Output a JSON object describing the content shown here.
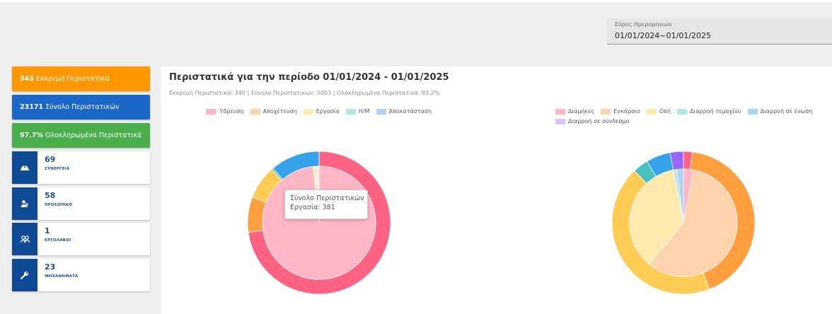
{
  "date_range": {
    "label": "Εύρος Ημερομηνιών",
    "value": "01/01/2024~01/01/2025"
  },
  "stat_bars": [
    {
      "value": "543",
      "label": "Εκκρεμή Περιστατικά",
      "color": "#ff9700"
    },
    {
      "value": "23171",
      "label": "Σύνολο Περιστατικών",
      "color": "#1a67c8"
    },
    {
      "value": "97.7%",
      "label": "Ολοκληρωμένα Περιστατικά",
      "color": "#4aae4d"
    }
  ],
  "cards": [
    {
      "value": "69",
      "label": "ΣΥΝΕΡΓΕΙΑ",
      "icon": "hard-hat-icon"
    },
    {
      "value": "58",
      "label": "ΠΡΟΣΩΠΙΚΟ",
      "icon": "user-key-icon"
    },
    {
      "value": "1",
      "label": "ΕΡΓΟΛΑΒΟΙ",
      "icon": "users-icon"
    },
    {
      "value": "23",
      "label": "ΜΗΧΑΝΗΜΑΤΑ",
      "icon": "wrench-icon"
    }
  ],
  "panel": {
    "title": "Περιστατικά για την περίοδο 01/01/2024 - 01/01/2025",
    "subtitle": "Εκκρεμή Περιστατικά: 340 | Σύνολο Περιστατικών: 5003 | Ολοκληρωμένα Περιστατικά: 93.2%"
  },
  "legend_left": [
    {
      "label": "Ύδρευση",
      "color": "#ffb6c5"
    },
    {
      "label": "Αποχέτευση",
      "color": "#ffd4ad"
    },
    {
      "label": "Εργασία",
      "color": "#ffeaad"
    },
    {
      "label": "Η/Μ",
      "color": "#b2e6e6"
    },
    {
      "label": "Αποκατάσταση",
      "color": "#aad3f5"
    }
  ],
  "legend_right": [
    {
      "label": "Διαμήκες",
      "color": "#ffb6c5"
    },
    {
      "label": "Εγκάρσιο",
      "color": "#ffd4ad"
    },
    {
      "label": "Οπή",
      "color": "#ffeaad"
    },
    {
      "label": "Διαρροή τεμαχίου",
      "color": "#b2e6e6"
    },
    {
      "label": "Διαρροή σε ένωση",
      "color": "#aad3f5"
    },
    {
      "label": "Διαρροή σε σύνδεσμο",
      "color": "#d6c3f7"
    }
  ],
  "tooltip": {
    "title": "Σύνολο Περιστατικών",
    "line": "Εργασία: 381"
  },
  "chart_data": [
    {
      "type": "pie",
      "ring": "outer",
      "categories": [
        "Ύδρευση",
        "Αποχέτευση",
        "Εργασία",
        "Η/Μ",
        "Αποκατάσταση"
      ],
      "values": [
        3645,
        400,
        381,
        20,
        557
      ],
      "colors": [
        "#ff6384",
        "#ff9f40",
        "#ffcd56",
        "#4bc0c0",
        "#36a2eb"
      ]
    },
    {
      "type": "pie",
      "ring": "inner",
      "categories": [
        "Ύδρευση",
        "Αποχέτευση",
        "Εργασία",
        "Η/Μ",
        "Αποκατάσταση"
      ],
      "values": [
        4920,
        15,
        40,
        10,
        18
      ],
      "colors": [
        "#ffb6c5",
        "#ffd4ad",
        "#ffeaad",
        "#b2e6e6",
        "#aad3f5"
      ]
    },
    {
      "type": "pie",
      "ring": "outer",
      "categories": [
        "Διαμήκες",
        "Εγκάρσιο",
        "Οπή",
        "Διαρροή τεμαχίου",
        "Διαρροή σε ένωση",
        "Διαρροή σε σύνδεσμο"
      ],
      "values": [
        2,
        42,
        44,
        3.5,
        5.5,
        3
      ],
      "colors": [
        "#ff6384",
        "#ff9f40",
        "#ffcd56",
        "#4bc0c0",
        "#36a2eb",
        "#9966ff"
      ]
    },
    {
      "type": "pie",
      "ring": "inner",
      "categories": [
        "Διαμήκες",
        "Εγκάρσιο",
        "Οπή",
        "Διαρροή τεμαχίου",
        "Διαρροή σε ένωση",
        "Διαρροή σε σύνδεσμο"
      ],
      "values": [
        3,
        58,
        36,
        1,
        2,
        0
      ],
      "colors": [
        "#ffb6c5",
        "#ffd4ad",
        "#ffeaad",
        "#b2e6e6",
        "#aad3f5",
        "#d6c3f7"
      ]
    }
  ]
}
